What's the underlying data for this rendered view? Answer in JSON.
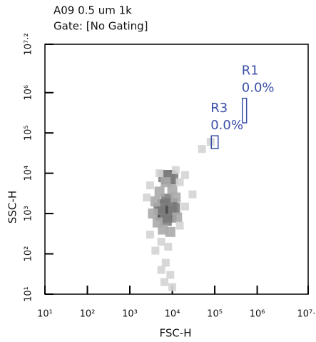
{
  "chart_data": {
    "type": "density-scatter",
    "title": "A09 0.5 um 1k",
    "subtitle": "Gate: [No Gating]",
    "x_label": "FSC-H",
    "y_label": "SSC-H",
    "x_scale": "log",
    "y_scale": "log",
    "xlim": [
      10,
      15848931.92
    ],
    "ylim": [
      10,
      15848931.92
    ],
    "xticks": [
      {
        "value": 10,
        "label": "10¹"
      },
      {
        "value": 100,
        "label": "10²"
      },
      {
        "value": 1000,
        "label": "10³"
      },
      {
        "value": 10000,
        "label": "10⁴"
      },
      {
        "value": 100000,
        "label": "10⁵"
      },
      {
        "value": 1000000,
        "label": "10⁶"
      },
      {
        "value": 15848931.92,
        "label": "10⁷·²"
      }
    ],
    "yticks": [
      {
        "value": 10,
        "label": "10¹"
      },
      {
        "value": 100,
        "label": "10²"
      },
      {
        "value": 1000,
        "label": "10³"
      },
      {
        "value": 10000,
        "label": "10⁴"
      },
      {
        "value": 100000,
        "label": "10⁵"
      },
      {
        "value": 1000000,
        "label": "10⁶"
      },
      {
        "value": 15848931.92,
        "label": "10⁷·²"
      }
    ],
    "density_colors": [
      "#d4d4d4",
      "#aaaaaa",
      "#808080",
      "#4d4d4d",
      "#1a1a1a"
    ],
    "x": [
      7000,
      8000,
      6500,
      9000,
      6000,
      8500,
      5000,
      11000,
      7500,
      7000,
      8000,
      6500,
      10000,
      7000,
      4000,
      4500,
      12000,
      13000,
      5000,
      10000,
      3500,
      6000,
      9000,
      5500,
      8000,
      4000,
      7000,
      5500,
      9000,
      3000,
      15000,
      20000,
      3000,
      15000,
      20000,
      12000,
      5000,
      30000,
      50000,
      80000,
      2500,
      6500,
      10000
    ],
    "y": [
      1300,
      1200,
      1500,
      1600,
      1000,
      900,
      1300,
      1300,
      2200,
      700,
      8000,
      8500,
      7500,
      6000,
      2000,
      600,
      2500,
      800,
      3500,
      4000,
      1000,
      400,
      350,
      200,
      150,
      120,
      60,
      40,
      30,
      300,
      500,
      1500,
      5000,
      6000,
      9000,
      12000,
      10000,
      3000,
      40000,
      60000,
      2500,
      20,
      15
    ],
    "density": [
      5,
      5,
      4,
      4,
      4,
      4,
      3,
      3,
      3,
      3,
      4,
      3,
      3,
      2,
      2,
      2,
      2,
      2,
      2,
      2,
      2,
      2,
      2,
      1,
      1,
      1,
      1,
      1,
      1,
      1,
      1,
      1,
      1,
      1,
      1,
      1,
      1,
      1,
      1,
      1,
      1,
      1,
      1
    ],
    "gate_color": "#3a4fa8",
    "gates": [
      {
        "name": "R1",
        "percent": 0.0,
        "percent_label": "0.0%",
        "xlim": [
          447000,
          562000
        ],
        "ylim": [
          178000,
          725000
        ]
      },
      {
        "name": "R3",
        "percent": 0.0,
        "percent_label": "0.0%",
        "xlim": [
          83000,
          120000
        ],
        "ylim": [
          40700,
          85000
        ]
      }
    ]
  }
}
